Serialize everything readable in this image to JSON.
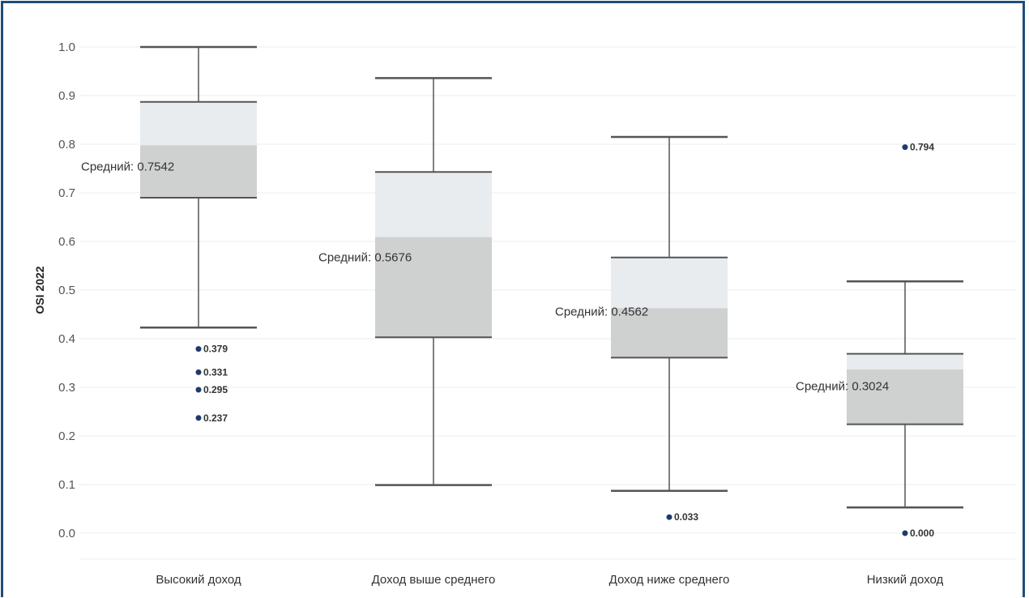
{
  "chart_data": {
    "type": "boxplot",
    "ylabel": "OSI 2022",
    "ylim": [
      0.0,
      1.0
    ],
    "yticks": [
      "0.0",
      "0.1",
      "0.2",
      "0.3",
      "0.4",
      "0.5",
      "0.6",
      "0.7",
      "0.8",
      "0.9",
      "1.0"
    ],
    "grid": true,
    "categories": [
      "Высокий доход",
      "Доход выше среднего",
      "Доход ниже среднего",
      "Низкий доход"
    ],
    "boxes": [
      {
        "category": "Высокий доход",
        "whisker_low": 0.423,
        "q1": 0.69,
        "median": 0.798,
        "q3": 0.887,
        "whisker_high": 1.0,
        "mean": 0.7542,
        "mean_label": "Средний: 0.7542",
        "outliers": [
          0.379,
          0.331,
          0.295,
          0.237
        ],
        "outlier_labels": [
          "0.379",
          "0.331",
          "0.295",
          "0.237"
        ]
      },
      {
        "category": "Доход выше среднего",
        "whisker_low": 0.099,
        "q1": 0.403,
        "median": 0.609,
        "q3": 0.743,
        "whisker_high": 0.936,
        "mean": 0.5676,
        "mean_label": "Средний: 0.5676",
        "outliers": [],
        "outlier_labels": []
      },
      {
        "category": "Доход ниже среднего",
        "whisker_low": 0.087,
        "q1": 0.361,
        "median": 0.463,
        "q3": 0.567,
        "whisker_high": 0.815,
        "mean": 0.4562,
        "mean_label": "Средний: 0.4562",
        "outliers": [
          0.033
        ],
        "outlier_labels": [
          "0.033"
        ]
      },
      {
        "category": "Низкий доход",
        "whisker_low": 0.053,
        "q1": 0.224,
        "median": 0.337,
        "q3": 0.369,
        "whisker_high": 0.518,
        "mean": 0.3024,
        "mean_label": "Средний: 0.3024",
        "outliers": [
          0.794,
          0.0
        ],
        "outlier_labels": [
          "0.794",
          "0.000"
        ]
      }
    ]
  },
  "colors": {
    "upper_box": "#e9ecee",
    "lower_box": "#cfd1d1",
    "lines": "#555555",
    "outlier": "#1f3a6b",
    "grid": "#ececec",
    "frame": "#1f4e79"
  }
}
